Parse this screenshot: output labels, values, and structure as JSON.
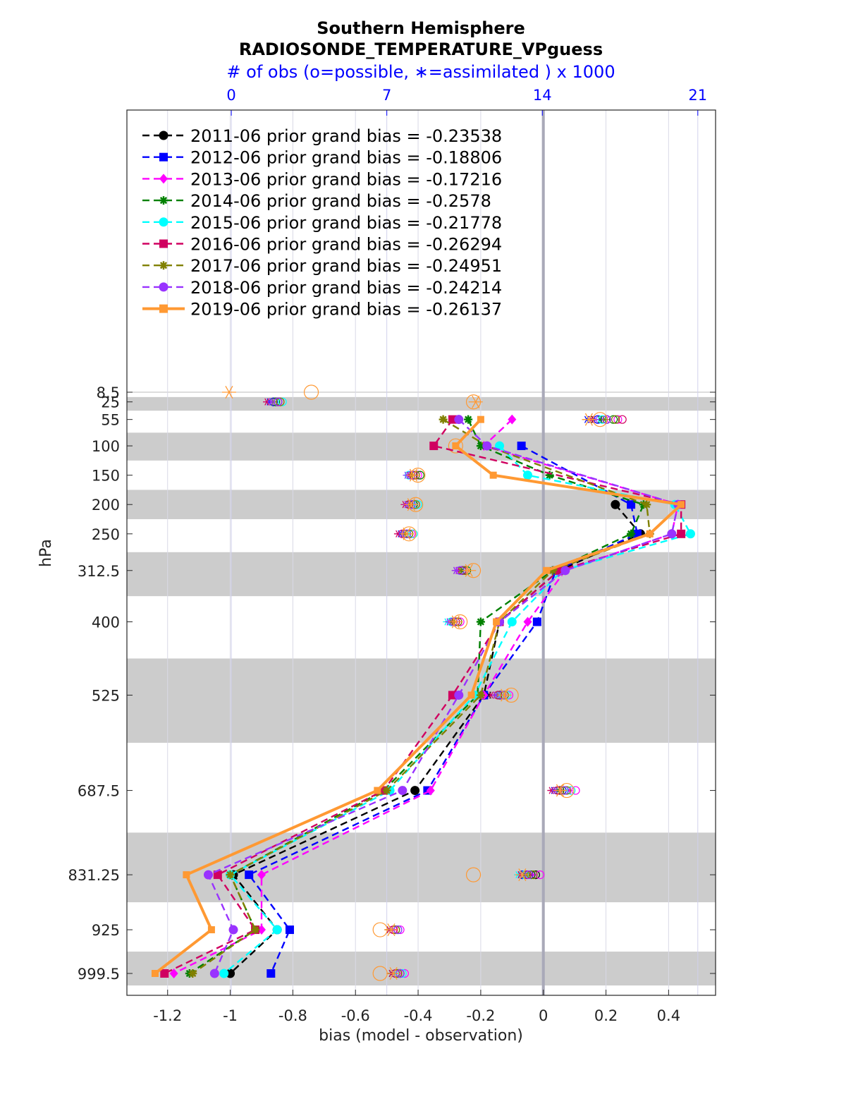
{
  "chart_data": {
    "type": "line",
    "title": "Southern Hemisphere",
    "subtitle": "RADIOSONDE_TEMPERATURE_VPguess",
    "top_axis_label": "# of obs (o=possible, ∗=assimilated ) x 1000",
    "top_ticks": [
      "0",
      "7",
      "14",
      "21"
    ],
    "top_range": [
      -4.7,
      21.8
    ],
    "xlabel": "bias (model - observation)",
    "ylabel": "hPa",
    "xlim": [
      -1.33,
      0.55
    ],
    "x_ticks": [
      "-1.2",
      "-1",
      "-0.8",
      "-0.6",
      "-0.4",
      "-0.2",
      "0",
      "0.2",
      "0.4"
    ],
    "y_levels": [
      "8.5",
      "25",
      "55",
      "100",
      "150",
      "200",
      "250",
      "312.5",
      "400",
      "525",
      "687.5",
      "831.25",
      "925",
      "999.5"
    ],
    "grid": true,
    "legend_position": "top-left",
    "series": [
      {
        "name": "2011-06 prior grand bias = -0.23538",
        "color": "#000000",
        "marker": "circle",
        "line": "dashed",
        "bias": [
          null,
          null,
          null,
          null,
          null,
          0.23,
          0.31,
          0.05,
          -0.14,
          -0.19,
          -0.41,
          -0.99,
          -0.85,
          -1.0
        ],
        "nposs": [
          null,
          2.1,
          16.9,
          null,
          8.2,
          8.2,
          7.9,
          10.5,
          10.2,
          12.1,
          14.8,
          13.7,
          7.4,
          7.5
        ],
        "nused": [
          null,
          1.8,
          16.3,
          null,
          8.0,
          8.0,
          7.8,
          10.2,
          10.0,
          11.6,
          14.6,
          13.4,
          7.3,
          7.2
        ]
      },
      {
        "name": "2012-06 prior grand bias = -0.18806",
        "color": "#0000ff",
        "marker": "square",
        "line": "dashed",
        "bias": [
          null,
          null,
          null,
          -0.07,
          null,
          0.28,
          0.3,
          0.04,
          -0.02,
          -0.19,
          -0.37,
          -0.94,
          -0.81,
          -0.87
        ],
        "nposs": [
          null,
          1.9,
          16.5,
          null,
          8.3,
          8.1,
          7.8,
          10.4,
          10.0,
          12.3,
          14.9,
          13.1,
          7.5,
          7.6
        ],
        "nused": [
          null,
          1.7,
          16.0,
          null,
          8.1,
          7.9,
          7.6,
          10.2,
          9.8,
          12.0,
          14.5,
          13.0,
          7.2,
          7.3
        ]
      },
      {
        "name": "2013-06 prior grand bias = -0.17216",
        "color": "#ff00ff",
        "marker": "diamond",
        "line": "dashed",
        "bias": [
          null,
          null,
          -0.1,
          -0.19,
          null,
          0.43,
          0.41,
          0.07,
          -0.05,
          -0.19,
          -0.36,
          -0.9,
          -0.9,
          -1.18
        ],
        "nposs": [
          null,
          2.2,
          17.4,
          null,
          8.4,
          8.3,
          8.1,
          10.5,
          10.3,
          12.5,
          15.5,
          13.9,
          7.6,
          7.8
        ],
        "nused": [
          null,
          1.8,
          16.9,
          null,
          8.1,
          8.1,
          7.9,
          10.2,
          10.1,
          12.2,
          15.2,
          13.6,
          7.3,
          7.3
        ]
      },
      {
        "name": "2014-06 prior grand bias = -0.2578",
        "color": "#008000",
        "marker": "star",
        "line": "dashed",
        "bias": [
          null,
          null,
          -0.24,
          -0.2,
          0.02,
          0.32,
          0.28,
          0.03,
          -0.2,
          -0.21,
          -0.51,
          -1.0,
          -0.92,
          -1.13
        ],
        "nposs": [
          null,
          2.0,
          17.2,
          null,
          8.5,
          8.2,
          8.0,
          10.6,
          10.1,
          12.2,
          15.0,
          13.5,
          7.4,
          7.6
        ],
        "nused": [
          null,
          1.9,
          16.6,
          null,
          8.2,
          8.0,
          7.8,
          10.4,
          9.9,
          11.9,
          14.7,
          13.2,
          7.1,
          7.2
        ]
      },
      {
        "name": "2015-06 prior grand bias = -0.21778",
        "color": "#00ffff",
        "marker": "circle",
        "line": "dashed",
        "bias": [
          null,
          null,
          null,
          -0.14,
          -0.05,
          0.42,
          0.47,
          0.06,
          -0.1,
          -0.22,
          -0.49,
          -1.0,
          -0.85,
          -1.02
        ],
        "nposs": [
          null,
          2.3,
          16.7,
          null,
          8.0,
          8.4,
          8.2,
          10.3,
          9.9,
          12.4,
          15.3,
          13.2,
          7.5,
          7.7
        ],
        "nused": [
          null,
          1.9,
          16.1,
          null,
          7.9,
          8.2,
          8.0,
          10.1,
          9.7,
          12.1,
          14.9,
          12.9,
          7.2,
          7.4
        ]
      },
      {
        "name": "2016-06 prior grand bias = -0.26294",
        "color": "#d00060",
        "marker": "square",
        "line": "dashed",
        "bias": [
          null,
          null,
          -0.29,
          -0.35,
          null,
          0.44,
          0.44,
          0.05,
          -0.14,
          -0.29,
          -0.51,
          -1.04,
          -0.92,
          -1.21
        ],
        "nposs": [
          null,
          2.1,
          17.6,
          null,
          8.2,
          8.0,
          7.7,
          10.4,
          10.1,
          12.0,
          14.7,
          13.3,
          7.3,
          7.4
        ],
        "nused": [
          null,
          1.6,
          16.2,
          null,
          8.0,
          7.8,
          7.5,
          10.1,
          9.8,
          11.7,
          14.4,
          13.0,
          7.1,
          7.2
        ]
      },
      {
        "name": "2017-06 prior grand bias = -0.24951",
        "color": "#808000",
        "marker": "star",
        "line": "dashed",
        "bias": [
          null,
          null,
          -0.32,
          -0.18,
          null,
          0.33,
          0.34,
          0.03,
          -0.14,
          -0.2,
          -0.5,
          -1.0,
          -0.92,
          -1.12
        ],
        "nposs": [
          null,
          2.2,
          17.3,
          null,
          8.3,
          8.3,
          8.0,
          10.5,
          10.2,
          12.3,
          15.1,
          13.6,
          7.4,
          7.5
        ],
        "nused": [
          null,
          1.9,
          16.8,
          null,
          8.1,
          8.0,
          7.8,
          10.3,
          10.0,
          12.0,
          14.8,
          13.3,
          7.2,
          7.3
        ]
      },
      {
        "name": "2018-06 prior grand bias = -0.24214",
        "color": "#9933ff",
        "marker": "circle",
        "line": "dashed",
        "bias": [
          null,
          null,
          -0.27,
          -0.18,
          null,
          0.43,
          0.41,
          0.07,
          -0.14,
          -0.27,
          -0.45,
          -1.07,
          -0.99,
          -1.05
        ],
        "nposs": [
          null,
          2.1,
          16.9,
          null,
          8.1,
          8.1,
          7.9,
          10.3,
          10.0,
          12.2,
          15.0,
          13.4,
          7.5,
          7.6
        ],
        "nused": [
          null,
          1.8,
          16.4,
          null,
          7.9,
          7.9,
          7.7,
          10.1,
          9.8,
          11.9,
          14.6,
          13.1,
          7.2,
          7.3
        ]
      },
      {
        "name": "2019-06 prior grand bias = -0.26137",
        "color": "#ff9933",
        "marker": "square",
        "line": "solid",
        "bias": [
          null,
          null,
          -0.2,
          -0.28,
          -0.16,
          0.44,
          0.34,
          0.01,
          -0.15,
          -0.23,
          -0.53,
          -1.14,
          -1.06,
          -1.24
        ],
        "nposs": [
          3.6,
          10.9,
          16.6,
          10.1,
          8.4,
          8.3,
          8.0,
          10.9,
          10.3,
          12.6,
          15.1,
          10.9,
          6.7,
          6.7
        ],
        "nused": [
          -0.1,
          11.0,
          16.1,
          null,
          8.2,
          8.1,
          7.9,
          10.7,
          10.1,
          12.3,
          14.8,
          13.1,
          7.2,
          7.3
        ]
      }
    ]
  }
}
